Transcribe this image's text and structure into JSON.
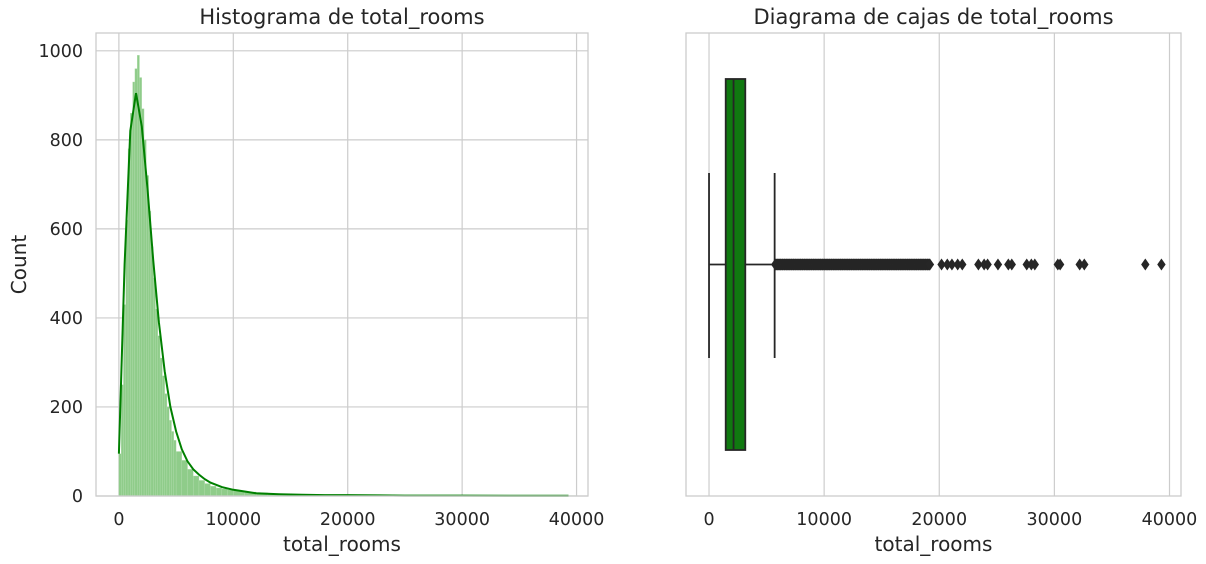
{
  "chart_data": [
    {
      "type": "histogram",
      "title": "Histograma de total_rooms",
      "xlabel": "total_rooms",
      "ylabel": "Count",
      "xlim": [
        -2000,
        41000
      ],
      "ylim": [
        0,
        1040
      ],
      "xticks": [
        0,
        10000,
        20000,
        30000,
        40000
      ],
      "yticks": [
        0,
        200,
        400,
        600,
        800,
        1000
      ],
      "grid": true,
      "bar_color": "#8fcc8a",
      "kde_color": "#008000",
      "bins": {
        "x": [
          0,
          200,
          400,
          600,
          800,
          1000,
          1200,
          1400,
          1600,
          1800,
          2000,
          2200,
          2400,
          2600,
          2800,
          3000,
          3200,
          3400,
          3600,
          3800,
          4000,
          4200,
          4400,
          4600,
          4800,
          5000,
          5500,
          6000,
          6500,
          7000,
          7500,
          8000,
          8500,
          9000,
          9500,
          10000,
          11000,
          12000,
          13000,
          14000,
          15000,
          16000,
          17000,
          18000,
          19000,
          20000,
          22000,
          24000,
          26000,
          28000,
          30000,
          32000,
          34000,
          36000,
          38000
        ],
        "counts": [
          95,
          250,
          430,
          620,
          780,
          860,
          930,
          960,
          990,
          940,
          870,
          800,
          720,
          640,
          560,
          490,
          420,
          360,
          310,
          270,
          230,
          200,
          170,
          145,
          125,
          100,
          80,
          60,
          45,
          35,
          28,
          22,
          18,
          16,
          14,
          12,
          9,
          7,
          5,
          4,
          4,
          3,
          3,
          3,
          2,
          2,
          2,
          2,
          1,
          1,
          1,
          1,
          1,
          1,
          1
        ]
      },
      "kde": {
        "x": [
          0,
          500,
          1000,
          1500,
          2000,
          2500,
          3000,
          3500,
          4000,
          4500,
          5000,
          5500,
          6000,
          6500,
          7000,
          7500,
          8000,
          9000,
          10000,
          11000,
          12000,
          14000,
          16000,
          18000,
          20000,
          25000,
          30000,
          35000,
          39300
        ],
        "y": [
          95,
          520,
          820,
          905,
          830,
          690,
          530,
          390,
          280,
          200,
          145,
          105,
          78,
          60,
          48,
          38,
          30,
          20,
          14,
          10,
          6,
          4,
          3,
          2,
          2,
          1,
          1,
          0.5,
          0.5
        ]
      }
    },
    {
      "type": "boxplot",
      "title": "Diagrama de cajas de total_rooms",
      "xlabel": "total_rooms",
      "xlim": [
        -2000,
        41000
      ],
      "xticks": [
        0,
        10000,
        20000,
        30000,
        40000
      ],
      "grid": true,
      "box_color": "#107910",
      "line_color": "#262626",
      "whisker_low": 0,
      "q1": 1450,
      "median": 2130,
      "q3": 3150,
      "whisker_high": 5700,
      "outliers_dense_range": [
        5750,
        19200
      ],
      "outliers": [
        20200,
        20700,
        21100,
        21600,
        22000,
        23400,
        23900,
        24200,
        25100,
        26000,
        26300,
        27600,
        28000,
        28300,
        30300,
        30500,
        32200,
        32600,
        37900,
        39300
      ]
    }
  ]
}
